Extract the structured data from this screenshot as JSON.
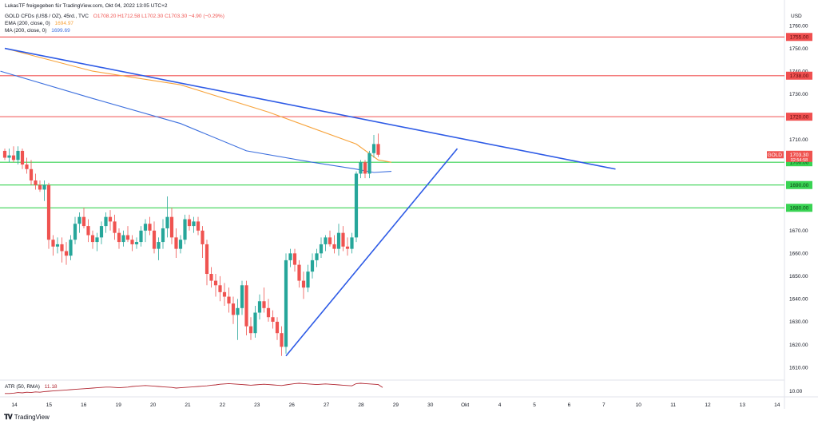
{
  "header": {
    "share_line": "LukasTF freigegeben für TradingView.com, Okt 04, 2022 13:05 UTC+2",
    "symbol_line": "GOLD CFDs (US$ / OZ), 45rd., TVC",
    "ohlc": "O1708.20 H1712.58 L1702.30 C1703.30 −4.90 (−0.29%)",
    "ema_label": "EMA (200, close, 0)",
    "ema_value": "1694.97",
    "ma_label": "MA (200, close, 0)",
    "ma_value": "1699.69"
  },
  "atr": {
    "label": "ATR (50, RMA)",
    "value": "11.18",
    "axis_label": "10.00"
  },
  "footer": {
    "brand": "TradingView"
  },
  "colors": {
    "bull": "#26a69a",
    "bear": "#ef5350",
    "ema": "#f7a33b",
    "ma": "#3c6fde",
    "trend": "#2e5be6",
    "resistance": "#f05050",
    "support": "#39d353",
    "atr": "#b22833"
  },
  "chart_data": {
    "type": "candlestick",
    "currency": "USD",
    "symbol_tag": "GOLD",
    "last_price": "1703.30",
    "countdown": "02:54:58",
    "y_ticks": [
      "1760.00",
      "1750.00",
      "1740.00",
      "1730.00",
      "1720.00",
      "1710.00",
      "1680.00",
      "1670.00",
      "1660.00",
      "1650.00",
      "1640.00",
      "1630.00",
      "1620.00",
      "1610.00"
    ],
    "ylim": [
      1605,
      1765
    ],
    "x_ticks": [
      "14",
      "15",
      "16",
      "19",
      "20",
      "21",
      "22",
      "23",
      "26",
      "27",
      "28",
      "29",
      "30",
      "Okt",
      "4",
      "5",
      "6",
      "7",
      "10",
      "11",
      "12",
      "13",
      "14"
    ],
    "resistance_levels": [
      {
        "label": "1755.00",
        "value": 1755
      },
      {
        "label": "1738.00",
        "value": 1738
      },
      {
        "label": "1720.00",
        "value": 1720
      }
    ],
    "support_levels": [
      {
        "label": "1700.00",
        "value": 1700
      },
      {
        "label": "1690.00",
        "value": 1690
      },
      {
        "label": "1680.00",
        "value": 1680
      }
    ],
    "candles": [
      [
        1705,
        1706,
        1701,
        1702
      ],
      [
        1702,
        1706,
        1700,
        1703
      ],
      [
        1703,
        1707,
        1700,
        1701
      ],
      [
        1701,
        1707,
        1699,
        1705
      ],
      [
        1705,
        1706,
        1697,
        1699
      ],
      [
        1699,
        1702,
        1695,
        1697
      ],
      [
        1697,
        1701,
        1690,
        1692
      ],
      [
        1692,
        1695,
        1688,
        1690
      ],
      [
        1690,
        1692,
        1687,
        1688
      ],
      [
        1688,
        1692,
        1683,
        1690
      ],
      [
        1690,
        1691,
        1662,
        1666
      ],
      [
        1666,
        1668,
        1659,
        1663
      ],
      [
        1663,
        1667,
        1660,
        1664
      ],
      [
        1664,
        1667,
        1656,
        1661
      ],
      [
        1661,
        1665,
        1655,
        1659
      ],
      [
        1659,
        1668,
        1657,
        1666
      ],
      [
        1666,
        1676,
        1664,
        1673
      ],
      [
        1673,
        1678,
        1669,
        1676
      ],
      [
        1676,
        1680,
        1671,
        1672
      ],
      [
        1672,
        1675,
        1665,
        1668
      ],
      [
        1668,
        1670,
        1662,
        1665
      ],
      [
        1665,
        1669,
        1661,
        1667
      ],
      [
        1667,
        1674,
        1664,
        1672
      ],
      [
        1672,
        1678,
        1669,
        1676
      ],
      [
        1676,
        1679,
        1670,
        1674
      ],
      [
        1674,
        1677,
        1666,
        1669
      ],
      [
        1669,
        1671,
        1662,
        1665
      ],
      [
        1665,
        1670,
        1663,
        1668
      ],
      [
        1668,
        1672,
        1665,
        1666
      ],
      [
        1666,
        1668,
        1661,
        1664
      ],
      [
        1664,
        1667,
        1662,
        1665
      ],
      [
        1665,
        1672,
        1663,
        1670
      ],
      [
        1670,
        1675,
        1665,
        1673
      ],
      [
        1673,
        1676,
        1668,
        1670
      ],
      [
        1670,
        1674,
        1660,
        1662
      ],
      [
        1662,
        1667,
        1657,
        1665
      ],
      [
        1665,
        1675,
        1662,
        1671
      ],
      [
        1671,
        1685,
        1667,
        1676
      ],
      [
        1676,
        1680,
        1664,
        1667
      ],
      [
        1667,
        1671,
        1658,
        1662
      ],
      [
        1662,
        1668,
        1660,
        1666
      ],
      [
        1666,
        1677,
        1664,
        1675
      ],
      [
        1675,
        1677,
        1670,
        1672
      ],
      [
        1672,
        1676,
        1669,
        1674
      ],
      [
        1674,
        1676,
        1668,
        1670
      ],
      [
        1670,
        1672,
        1658,
        1664
      ],
      [
        1664,
        1666,
        1646,
        1651
      ],
      [
        1651,
        1654,
        1645,
        1648
      ],
      [
        1648,
        1651,
        1641,
        1646
      ],
      [
        1646,
        1650,
        1639,
        1643
      ],
      [
        1643,
        1647,
        1637,
        1641
      ],
      [
        1641,
        1645,
        1634,
        1638
      ],
      [
        1638,
        1641,
        1629,
        1633
      ],
      [
        1633,
        1640,
        1622,
        1636
      ],
      [
        1636,
        1648,
        1633,
        1646
      ],
      [
        1646,
        1648,
        1624,
        1628
      ],
      [
        1628,
        1632,
        1622,
        1625
      ],
      [
        1625,
        1637,
        1623,
        1634
      ],
      [
        1634,
        1642,
        1631,
        1639
      ],
      [
        1639,
        1645,
        1634,
        1636
      ],
      [
        1636,
        1640,
        1630,
        1632
      ],
      [
        1632,
        1635,
        1627,
        1630
      ],
      [
        1630,
        1632,
        1622,
        1625
      ],
      [
        1625,
        1628,
        1615,
        1619
      ],
      [
        1619,
        1660,
        1616,
        1657
      ],
      [
        1657,
        1662,
        1654,
        1660
      ],
      [
        1660,
        1662,
        1652,
        1655
      ],
      [
        1655,
        1657,
        1645,
        1648
      ],
      [
        1648,
        1652,
        1640,
        1645
      ],
      [
        1645,
        1655,
        1643,
        1652
      ],
      [
        1652,
        1660,
        1649,
        1657
      ],
      [
        1657,
        1662,
        1654,
        1660
      ],
      [
        1660,
        1667,
        1658,
        1664
      ],
      [
        1664,
        1668,
        1661,
        1667
      ],
      [
        1667,
        1670,
        1663,
        1664
      ],
      [
        1664,
        1668,
        1660,
        1662
      ],
      [
        1662,
        1673,
        1659,
        1669
      ],
      [
        1669,
        1672,
        1661,
        1663
      ],
      [
        1663,
        1667,
        1659,
        1662
      ],
      [
        1662,
        1669,
        1660,
        1667
      ],
      [
        1667,
        1696,
        1665,
        1695
      ],
      [
        1695,
        1701,
        1693,
        1700
      ],
      [
        1700,
        1701,
        1693,
        1695
      ],
      [
        1695,
        1705,
        1693,
        1704
      ],
      [
        1704,
        1712,
        1702,
        1708
      ],
      [
        1708,
        1712.58,
        1702.3,
        1703.3
      ]
    ],
    "ema_points": [
      [
        0,
        1750
      ],
      [
        20,
        1740
      ],
      [
        40,
        1734
      ],
      [
        60,
        1722
      ],
      [
        80,
        1708
      ],
      [
        85,
        1701
      ],
      [
        88,
        1700
      ]
    ],
    "ma_points": [
      [
        -1,
        1740
      ],
      [
        20,
        1728
      ],
      [
        40,
        1717
      ],
      [
        55,
        1705
      ],
      [
        70,
        1700
      ],
      [
        80,
        1697
      ],
      [
        84,
        1695.5
      ],
      [
        88,
        1696
      ]
    ],
    "trendlines": [
      {
        "from": [
          0,
          1750
        ],
        "to": [
          139,
          1697
        ]
      },
      {
        "from": [
          64,
          1615
        ],
        "to": [
          103,
          1706
        ]
      }
    ],
    "atr_values": [
      9.3,
      9.3,
      9.4,
      9.6,
      9.5,
      9.7,
      9.6,
      9.8,
      9.7,
      9.9,
      10.0,
      10.1,
      10.2,
      10.3,
      10.4,
      10.5,
      10.6,
      10.7,
      10.8,
      10.9,
      11.0,
      11.1,
      11.2,
      11.3,
      11.3,
      11.2,
      11.1,
      11.2,
      11.3,
      11.5,
      11.6,
      11.7,
      11.8,
      11.7,
      11.6,
      11.5,
      11.4,
      11.3,
      11.2,
      11.0,
      11.1,
      11.2,
      11.3,
      11.4,
      11.5,
      11.6,
      11.7,
      11.9,
      12.0,
      12.2,
      12.3,
      12.4,
      12.3,
      12.2,
      12.1,
      12.0,
      11.9,
      12.0,
      12.1,
      12.2,
      12.1,
      12.0,
      11.9,
      11.8,
      12.0,
      12.2,
      12.4,
      12.5,
      12.4,
      12.3,
      12.2,
      12.1,
      12.2,
      12.3,
      12.2,
      12.1,
      12.0,
      11.9,
      11.8,
      11.7,
      12.4,
      12.5,
      12.4,
      12.3,
      12.2,
      12.1,
      11.2
    ]
  }
}
